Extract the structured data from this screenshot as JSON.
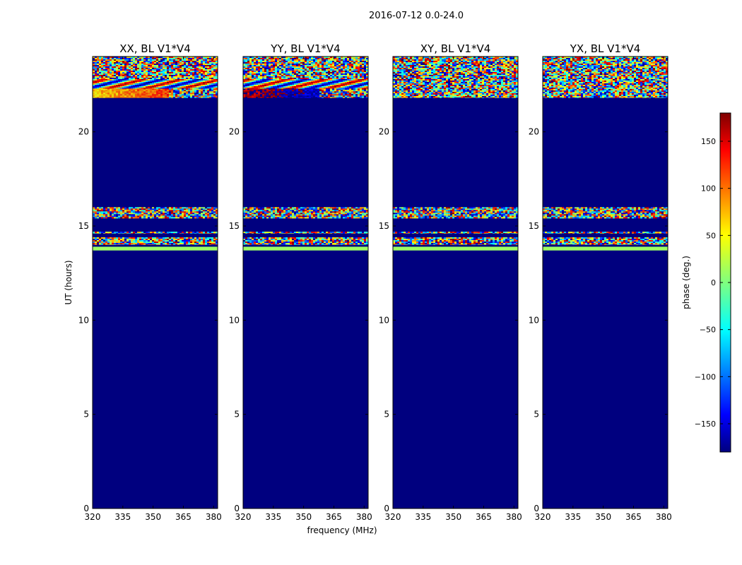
{
  "figure": {
    "suptitle": "2016-07-12 0.0-24.0"
  },
  "chart_data": {
    "type": "heatmap",
    "colormap": "jet",
    "colors": {
      "background": "#00007f",
      "axis": "#000000"
    },
    "xlabel": "frequency (MHz)",
    "ylabel": "UT (hours)",
    "xlim": [
      320,
      382
    ],
    "ylim": [
      0,
      24
    ],
    "xticks": [
      320,
      335,
      350,
      365,
      380
    ],
    "xtick_labels": [
      "320",
      "335",
      "350",
      "365",
      "380"
    ],
    "yticks": [
      0,
      5,
      10,
      15,
      20
    ],
    "ytick_labels": [
      "0",
      "5",
      "10",
      "15",
      "20"
    ],
    "colorbar": {
      "label": "phase (deg.)",
      "range": [
        -180,
        180
      ],
      "ticks": [
        -150,
        -100,
        -50,
        0,
        50,
        100,
        150
      ],
      "tick_labels": [
        "−150",
        "−100",
        "−50",
        "0",
        "50",
        "100",
        "150"
      ]
    },
    "panels": [
      {
        "title": "XX, BL V1*V4",
        "pol": "XX",
        "data_bands": [
          {
            "ut_start": 13.7,
            "ut_end": 13.9,
            "pattern": "constant",
            "phase": 10
          },
          {
            "ut_start": 14.0,
            "ut_end": 14.4,
            "pattern": "noise"
          },
          {
            "ut_start": 14.6,
            "ut_end": 14.7,
            "pattern": "noise"
          },
          {
            "ut_start": 15.4,
            "ut_end": 16.0,
            "pattern": "noise"
          },
          {
            "ut_start": 21.8,
            "ut_end": 22.3,
            "pattern": "smooth",
            "phase": 60
          },
          {
            "ut_start": 22.3,
            "ut_end": 22.8,
            "pattern": "fringe"
          },
          {
            "ut_start": 22.8,
            "ut_end": 24.0,
            "pattern": "noise"
          }
        ]
      },
      {
        "title": "YY, BL V1*V4",
        "pol": "YY",
        "data_bands": [
          {
            "ut_start": 13.7,
            "ut_end": 13.9,
            "pattern": "constant",
            "phase": 10
          },
          {
            "ut_start": 14.0,
            "ut_end": 14.4,
            "pattern": "noise"
          },
          {
            "ut_start": 14.6,
            "ut_end": 14.7,
            "pattern": "noise"
          },
          {
            "ut_start": 15.4,
            "ut_end": 16.0,
            "pattern": "noise"
          },
          {
            "ut_start": 21.8,
            "ut_end": 22.3,
            "pattern": "smooth",
            "phase": 160
          },
          {
            "ut_start": 22.3,
            "ut_end": 22.8,
            "pattern": "fringe"
          },
          {
            "ut_start": 22.8,
            "ut_end": 24.0,
            "pattern": "noise"
          }
        ]
      },
      {
        "title": "XY, BL V1*V4",
        "pol": "XY",
        "data_bands": [
          {
            "ut_start": 13.7,
            "ut_end": 13.9,
            "pattern": "constant",
            "phase": 10
          },
          {
            "ut_start": 14.0,
            "ut_end": 14.4,
            "pattern": "noise"
          },
          {
            "ut_start": 14.6,
            "ut_end": 14.7,
            "pattern": "noise"
          },
          {
            "ut_start": 15.4,
            "ut_end": 16.0,
            "pattern": "noise"
          },
          {
            "ut_start": 21.8,
            "ut_end": 22.8,
            "pattern": "noise"
          },
          {
            "ut_start": 22.8,
            "ut_end": 24.0,
            "pattern": "noise"
          }
        ]
      },
      {
        "title": "YX, BL V1*V4",
        "pol": "YX",
        "data_bands": [
          {
            "ut_start": 13.7,
            "ut_end": 13.9,
            "pattern": "constant",
            "phase": 10
          },
          {
            "ut_start": 14.0,
            "ut_end": 14.4,
            "pattern": "noise"
          },
          {
            "ut_start": 14.6,
            "ut_end": 14.7,
            "pattern": "noise"
          },
          {
            "ut_start": 15.4,
            "ut_end": 16.0,
            "pattern": "noise"
          },
          {
            "ut_start": 21.8,
            "ut_end": 22.8,
            "pattern": "noise"
          },
          {
            "ut_start": 22.8,
            "ut_end": 24.0,
            "pattern": "noise"
          }
        ]
      }
    ]
  }
}
